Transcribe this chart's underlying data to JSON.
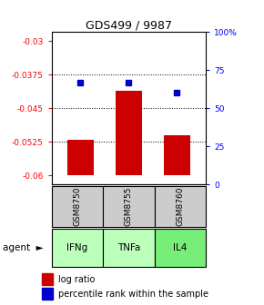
{
  "title": "GDS499 / 9987",
  "categories": [
    "IFNg",
    "TNFa",
    "IL4"
  ],
  "gsm_labels": [
    "GSM8750",
    "GSM8755",
    "GSM8760"
  ],
  "log_ratios": [
    -0.052,
    -0.041,
    -0.051
  ],
  "percentile_ranks": [
    67,
    67,
    60
  ],
  "ylim_left": [
    -0.062,
    -0.028
  ],
  "ylim_right": [
    0,
    100
  ],
  "yticks_left": [
    -0.06,
    -0.0525,
    -0.045,
    -0.0375,
    -0.03
  ],
  "ytick_labels_left": [
    "-0.06",
    "-0.0525",
    "-0.045",
    "-0.0375",
    "-0.03"
  ],
  "yticks_right": [
    0,
    25,
    50,
    75,
    100
  ],
  "ytick_labels_right": [
    "0",
    "25",
    "50",
    "75",
    "100%"
  ],
  "bar_color": "#cc0000",
  "point_color": "#0000cc",
  "bar_bottom": -0.06,
  "gray_box_color": "#cccccc",
  "agent_colors": [
    "#bbffbb",
    "#bbffbb",
    "#77ee77"
  ],
  "hgrid_vals": [
    -0.0375,
    -0.045,
    -0.0525
  ]
}
